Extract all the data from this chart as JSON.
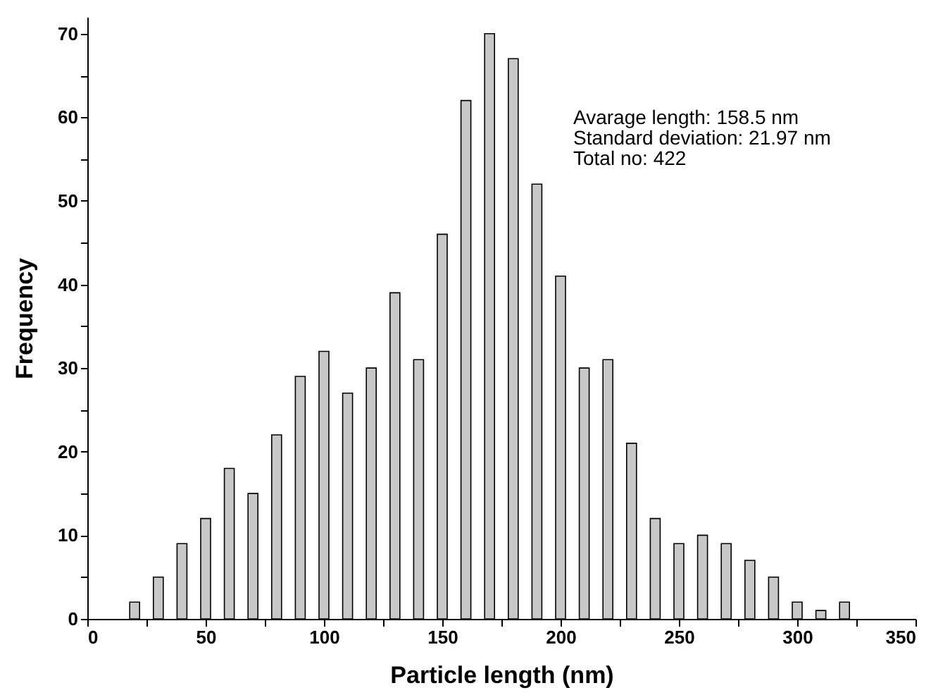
{
  "chart_data": {
    "type": "bar",
    "xlabel": "Particle length (nm)",
    "ylabel": "Frequency",
    "x": [
      20,
      30,
      40,
      50,
      60,
      70,
      80,
      90,
      100,
      110,
      120,
      130,
      140,
      150,
      160,
      170,
      180,
      190,
      200,
      210,
      220,
      230,
      240,
      250,
      260,
      270,
      280,
      290,
      300,
      310,
      320
    ],
    "values": [
      2,
      5,
      9,
      12,
      18,
      15,
      22,
      29,
      32,
      27,
      30,
      39,
      31,
      46,
      62,
      70,
      67,
      52,
      41,
      30,
      31,
      21,
      12,
      9,
      10,
      9,
      7,
      5,
      2,
      1,
      2
    ],
    "color": "#c8c8c8",
    "xlim": [
      0,
      350
    ],
    "ylim": [
      0,
      72
    ],
    "xticks": [
      0,
      {
        "value": 25,
        "label": null
      },
      50,
      {
        "value": 75,
        "label": null
      },
      100,
      {
        "value": 125,
        "label": null
      },
      150,
      {
        "value": 175,
        "label": null
      },
      200,
      {
        "value": 225,
        "label": null
      },
      250,
      {
        "value": 275,
        "label": null
      },
      300,
      {
        "value": 325,
        "label": null
      },
      350
    ],
    "yticks": [
      0,
      {
        "value": 5,
        "label": null
      },
      10,
      {
        "value": 15,
        "label": null
      },
      20,
      {
        "value": 25,
        "label": null
      },
      30,
      {
        "value": 35,
        "label": null
      },
      40,
      {
        "value": 45,
        "label": null
      },
      50,
      {
        "value": 55,
        "label": null
      },
      60,
      {
        "value": 65,
        "label": null
      },
      70
    ],
    "annotations": [
      "Avarage length: 158.5 nm",
      "Standard deviation: 21.97 nm",
      "Total no: 422"
    ],
    "grid": false
  }
}
